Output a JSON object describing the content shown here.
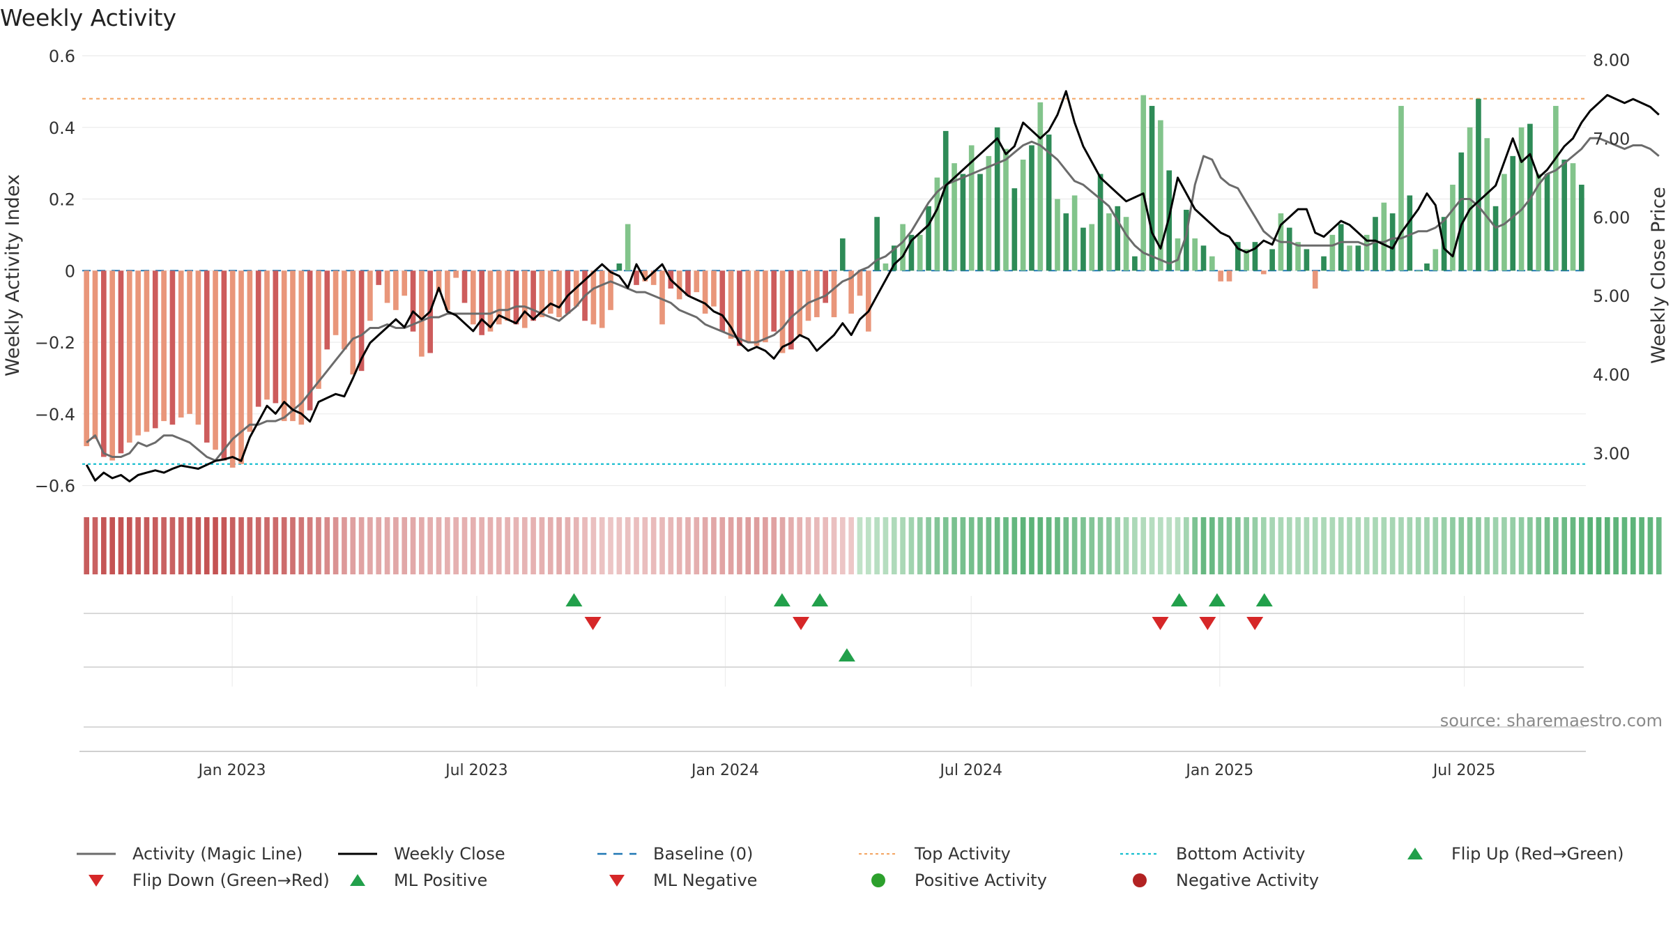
{
  "chart_data": {
    "type": "bar",
    "title": "Weekly Activity",
    "ylabel": "Weekly Activity Index",
    "y2label": "Weekly Close Price",
    "source": "source: sharemaestro.com",
    "x_range": [
      "2022-09-12",
      "2025-09-29"
    ],
    "ylim": [
      -0.63,
      0.6
    ],
    "y2lim": [
      2.45,
      8.05
    ],
    "yticks": [
      0.6,
      0.4,
      0.2,
      0,
      -0.2,
      -0.4,
      -0.6
    ],
    "ytick_labels": [
      "0.6",
      "0.4",
      "0.2",
      "0",
      "−0.2",
      "−0.4",
      "−0.6"
    ],
    "y2ticks": [
      8,
      7,
      6,
      5,
      4,
      3
    ],
    "y2tick_labels": [
      "8.00",
      "7.00",
      "6.00",
      "5.00",
      "4.00",
      "3.00"
    ],
    "xticks": [
      "2023-01-01",
      "2023-07-01",
      "2024-01-01",
      "2024-07-01",
      "2025-01-01",
      "2025-07-01"
    ],
    "xtick_labels": [
      "Jan 2023",
      "Jul 2023",
      "Jan 2024",
      "Jul 2024",
      "Jan 2025",
      "Jul 2025"
    ],
    "top_activity": 0.48,
    "bottom_activity": -0.54,
    "grid": true,
    "legend_position": "bottom",
    "colors": {
      "pos_dark": "#2e8b57",
      "pos_light": "#82c48b",
      "neg_dark": "#cd5c5c",
      "neg_light": "#e9967a",
      "magic_line": "#6b6b6b",
      "weekly_close": "#000000",
      "baseline": "#1f77b4",
      "top_line": "#f4a460",
      "bottom_line": "#17becf",
      "marker_up": "#22a04b",
      "marker_down": "#d62728",
      "positive_dot": "#2ca02c",
      "negative_dot": "#b22222"
    },
    "activity": [
      -0.49,
      -0.47,
      -0.52,
      -0.53,
      -0.51,
      -0.48,
      -0.46,
      -0.45,
      -0.44,
      -0.42,
      -0.43,
      -0.41,
      -0.4,
      -0.43,
      -0.48,
      -0.5,
      -0.53,
      -0.55,
      -0.54,
      -0.45,
      -0.38,
      -0.36,
      -0.37,
      -0.42,
      -0.42,
      -0.43,
      -0.39,
      -0.33,
      -0.22,
      -0.18,
      -0.22,
      -0.29,
      -0.28,
      -0.14,
      -0.04,
      -0.09,
      -0.11,
      -0.07,
      -0.17,
      -0.24,
      -0.23,
      -0.06,
      -0.11,
      -0.02,
      -0.09,
      -0.15,
      -0.18,
      -0.17,
      -0.15,
      -0.14,
      -0.15,
      -0.16,
      -0.14,
      -0.13,
      -0.12,
      -0.13,
      -0.12,
      -0.1,
      -0.14,
      -0.15,
      -0.16,
      -0.11,
      0.02,
      0.13,
      -0.04,
      -0.03,
      -0.04,
      -0.15,
      -0.05,
      -0.08,
      -0.07,
      -0.06,
      -0.12,
      -0.1,
      -0.17,
      -0.19,
      -0.21,
      -0.2,
      -0.21,
      -0.2,
      -0.17,
      -0.23,
      -0.22,
      -0.18,
      -0.14,
      -0.13,
      -0.09,
      -0.13,
      0.09,
      -0.12,
      -0.07,
      -0.17,
      0.15,
      0.02,
      0.07,
      0.13,
      0.1,
      0.1,
      0.18,
      0.26,
      0.39,
      0.3,
      0.27,
      0.35,
      0.27,
      0.32,
      0.4,
      0.34,
      0.23,
      0.31,
      0.35,
      0.47,
      0.38,
      0.2,
      0.16,
      0.21,
      0.12,
      0.13,
      0.27,
      0.16,
      0.18,
      0.15,
      0.04,
      0.49,
      0.46,
      0.42,
      0.28,
      0.09,
      0.17,
      0.09,
      0.07,
      0.04,
      -0.03,
      -0.03,
      0.08,
      0.06,
      0.08,
      -0.01,
      0.06,
      0.16,
      0.12,
      0.08,
      0.06,
      -0.05,
      0.04,
      0.1,
      0.13,
      0.07,
      0.07,
      0.1,
      0.15,
      0.19,
      0.16,
      0.46,
      0.21,
      0.0,
      0.02,
      0.06,
      0.15,
      0.24,
      0.33,
      0.4,
      0.48,
      0.37,
      0.18,
      0.27,
      0.32,
      0.4,
      0.41,
      0.27,
      0.27,
      0.46,
      0.31,
      0.3,
      0.24
    ],
    "magic_line": [
      -0.48,
      -0.46,
      -0.51,
      -0.52,
      -0.52,
      -0.51,
      -0.48,
      -0.49,
      -0.48,
      -0.46,
      -0.46,
      -0.47,
      -0.48,
      -0.5,
      -0.52,
      -0.53,
      -0.5,
      -0.47,
      -0.45,
      -0.43,
      -0.43,
      -0.42,
      -0.42,
      -0.41,
      -0.39,
      -0.37,
      -0.34,
      -0.31,
      -0.28,
      -0.25,
      -0.22,
      -0.19,
      -0.18,
      -0.16,
      -0.16,
      -0.15,
      -0.16,
      -0.16,
      -0.15,
      -0.14,
      -0.13,
      -0.13,
      -0.12,
      -0.12,
      -0.12,
      -0.12,
      -0.12,
      -0.12,
      -0.11,
      -0.11,
      -0.1,
      -0.1,
      -0.11,
      -0.12,
      -0.13,
      -0.14,
      -0.12,
      -0.1,
      -0.07,
      -0.05,
      -0.04,
      -0.03,
      -0.04,
      -0.05,
      -0.06,
      -0.06,
      -0.07,
      -0.08,
      -0.09,
      -0.11,
      -0.12,
      -0.13,
      -0.15,
      -0.16,
      -0.17,
      -0.18,
      -0.19,
      -0.2,
      -0.2,
      -0.19,
      -0.18,
      -0.16,
      -0.13,
      -0.11,
      -0.09,
      -0.08,
      -0.07,
      -0.05,
      -0.03,
      -0.02,
      0.0,
      0.01,
      0.03,
      0.04,
      0.06,
      0.08,
      0.11,
      0.15,
      0.19,
      0.22,
      0.24,
      0.25,
      0.26,
      0.27,
      0.28,
      0.29,
      0.3,
      0.31,
      0.33,
      0.35,
      0.36,
      0.35,
      0.33,
      0.31,
      0.28,
      0.25,
      0.24,
      0.22,
      0.2,
      0.18,
      0.14,
      0.1,
      0.07,
      0.05,
      0.04,
      0.03,
      0.02,
      0.03,
      0.1,
      0.24,
      0.32,
      0.31,
      0.26,
      0.24,
      0.23,
      0.19,
      0.15,
      0.11,
      0.09,
      0.08,
      0.08,
      0.07,
      0.07,
      0.07,
      0.07,
      0.07,
      0.08,
      0.08,
      0.08,
      0.07,
      0.08,
      0.08,
      0.09,
      0.09,
      0.1,
      0.11,
      0.11,
      0.12,
      0.14,
      0.17,
      0.2,
      0.2,
      0.18,
      0.15,
      0.12,
      0.13,
      0.15,
      0.17,
      0.2,
      0.24,
      0.27,
      0.28,
      0.3,
      0.32,
      0.34,
      0.37,
      0.37,
      0.36,
      0.35,
      0.34,
      0.35,
      0.35,
      0.34,
      0.32
    ],
    "weekly_close": [
      2.85,
      2.65,
      2.75,
      2.68,
      2.72,
      2.64,
      2.72,
      2.75,
      2.78,
      2.75,
      2.8,
      2.84,
      2.82,
      2.8,
      2.85,
      2.9,
      2.92,
      2.95,
      2.9,
      3.2,
      3.4,
      3.6,
      3.5,
      3.65,
      3.55,
      3.5,
      3.4,
      3.65,
      3.7,
      3.75,
      3.72,
      3.95,
      4.2,
      4.4,
      4.5,
      4.6,
      4.7,
      4.6,
      4.8,
      4.7,
      4.8,
      5.1,
      4.8,
      4.75,
      4.65,
      4.55,
      4.7,
      4.6,
      4.75,
      4.7,
      4.65,
      4.8,
      4.7,
      4.8,
      4.9,
      4.85,
      5.0,
      5.1,
      5.2,
      5.3,
      5.4,
      5.3,
      5.25,
      5.1,
      5.4,
      5.2,
      5.3,
      5.4,
      5.2,
      5.1,
      5.0,
      4.95,
      4.9,
      4.8,
      4.75,
      4.6,
      4.4,
      4.3,
      4.35,
      4.3,
      4.2,
      4.35,
      4.4,
      4.5,
      4.45,
      4.3,
      4.4,
      4.5,
      4.65,
      4.5,
      4.7,
      4.8,
      5.0,
      5.2,
      5.4,
      5.5,
      5.7,
      5.8,
      5.9,
      6.1,
      6.4,
      6.5,
      6.6,
      6.7,
      6.8,
      6.9,
      7.0,
      6.8,
      6.9,
      7.2,
      7.1,
      7.0,
      7.1,
      7.3,
      7.6,
      7.2,
      6.9,
      6.7,
      6.5,
      6.4,
      6.3,
      6.2,
      6.25,
      6.3,
      5.8,
      5.6,
      6.0,
      6.5,
      6.3,
      6.1,
      6.0,
      5.9,
      5.8,
      5.75,
      5.6,
      5.55,
      5.6,
      5.7,
      5.65,
      5.9,
      6.0,
      6.1,
      6.1,
      5.8,
      5.75,
      5.85,
      5.95,
      5.9,
      5.8,
      5.7,
      5.7,
      5.65,
      5.6,
      5.8,
      5.95,
      6.1,
      6.3,
      6.15,
      5.6,
      5.5,
      5.9,
      6.1,
      6.2,
      6.3,
      6.4,
      6.7,
      7.0,
      6.7,
      6.8,
      6.5,
      6.6,
      6.75,
      6.9,
      7.0,
      7.2,
      7.35,
      7.45,
      7.55,
      7.5,
      7.45,
      7.5,
      7.45,
      7.4,
      7.3
    ],
    "flip_up": [
      "2023-09-11",
      "2024-02-12",
      "2024-03-11",
      "2024-12-02",
      "2024-12-30",
      "2025-02-03"
    ],
    "flip_down": [
      "2023-09-25",
      "2024-02-26",
      "2024-11-18",
      "2024-12-23",
      "2025-01-27"
    ],
    "ml_positive": [
      "2024-03-31"
    ],
    "ml_negative": [],
    "positive_activity": [],
    "negative_activity": [],
    "legend": [
      "Activity (Magic Line)",
      "Weekly Close",
      "Baseline (0)",
      "Top Activity",
      "Bottom Activity",
      "Flip Up (Red→Green)",
      "Flip Down (Green→Red)",
      "ML Positive",
      "ML Negative",
      "Positive Activity",
      "Negative Activity"
    ]
  }
}
